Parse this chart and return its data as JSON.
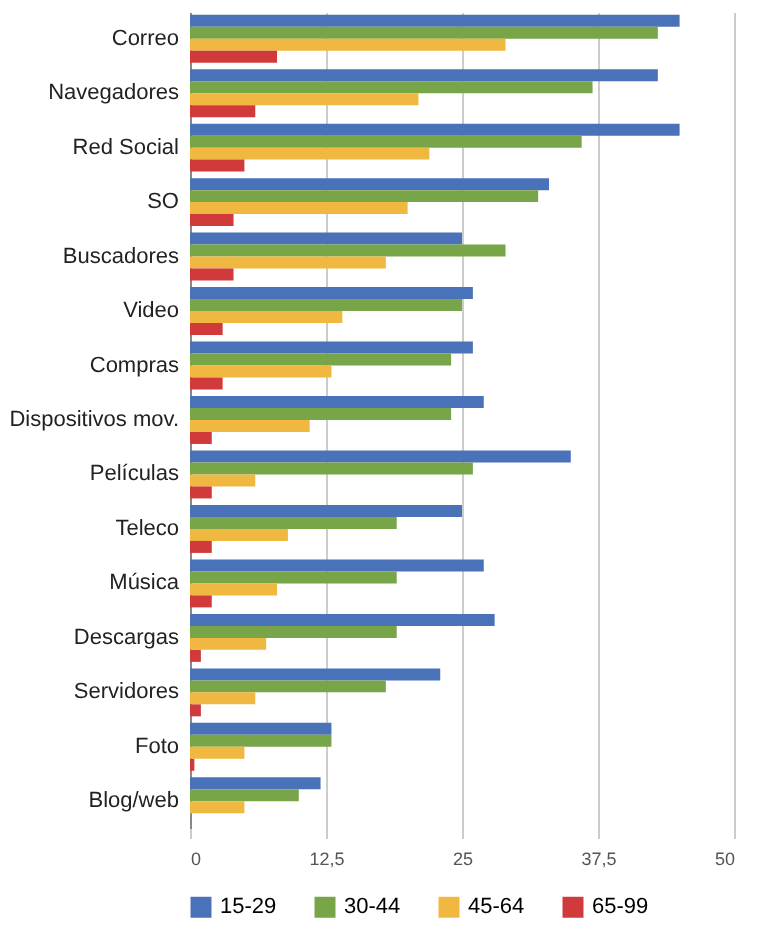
{
  "chart_data": {
    "type": "bar",
    "orientation": "horizontal",
    "categories": [
      "Correo",
      "Navegadores",
      "Red Social",
      "SO",
      "Buscadores",
      "Video",
      "Compras",
      "Dispositivos mov.",
      "Películas",
      "Teleco",
      "Música",
      "Descargas",
      "Servidores",
      "Foto",
      "Blog/web"
    ],
    "series": [
      {
        "name": "15-29",
        "color": "#4a72b8",
        "values": [
          45,
          43,
          45,
          33,
          25,
          26,
          26,
          27,
          35,
          25,
          27,
          28,
          23,
          13,
          12
        ]
      },
      {
        "name": "30-44",
        "color": "#78a548",
        "values": [
          43,
          37,
          36,
          32,
          29,
          25,
          24,
          24,
          26,
          19,
          19,
          19,
          18,
          13,
          10
        ]
      },
      {
        "name": "45-64",
        "color": "#f0b841",
        "values": [
          29,
          21,
          22,
          20,
          18,
          14,
          13,
          11,
          6,
          9,
          8,
          7,
          6,
          5,
          5
        ]
      },
      {
        "name": "65-99",
        "color": "#d03a3a",
        "values": [
          8,
          6,
          5,
          4,
          4,
          3,
          3,
          2,
          2,
          2,
          2,
          1,
          1,
          0.4,
          0
        ]
      }
    ],
    "xlim": [
      0,
      50
    ],
    "xticks": [
      0,
      {
        "value": 12.5,
        "label": "12,5"
      },
      25,
      {
        "value": 37.5,
        "label": "37,5"
      },
      50
    ],
    "grid": "x",
    "legend": "bottom"
  }
}
